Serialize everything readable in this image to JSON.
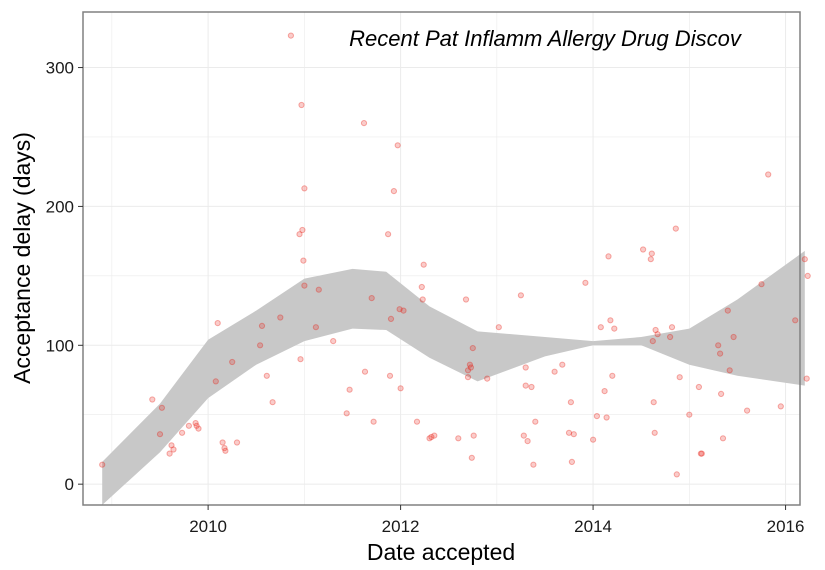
{
  "chart_data": {
    "type": "scatter",
    "title": "Recent Pat Inflamm Allergy Drug Discov",
    "xlabel": "Date accepted",
    "ylabel": "Acceptance delay (days)",
    "x_ticks": [
      2010,
      2012,
      2014,
      2016
    ],
    "y_ticks": [
      0,
      100,
      200,
      300
    ],
    "xlim": [
      2008.7,
      2016.15
    ],
    "ylim": [
      -15,
      340
    ],
    "grid": true,
    "point_color": "#e8190f",
    "band_color": "#c8c8c8",
    "points": [
      [
        2008.9,
        14
      ],
      [
        2009.42,
        61
      ],
      [
        2009.5,
        36
      ],
      [
        2009.52,
        55
      ],
      [
        2009.6,
        22
      ],
      [
        2009.62,
        28
      ],
      [
        2009.64,
        25
      ],
      [
        2009.73,
        37
      ],
      [
        2009.8,
        42
      ],
      [
        2009.87,
        44
      ],
      [
        2009.88,
        42
      ],
      [
        2009.9,
        40
      ],
      [
        2010.08,
        74
      ],
      [
        2010.1,
        116
      ],
      [
        2010.15,
        30
      ],
      [
        2010.17,
        26
      ],
      [
        2010.18,
        24
      ],
      [
        2010.25,
        88
      ],
      [
        2010.3,
        30
      ],
      [
        2010.54,
        100
      ],
      [
        2010.56,
        114
      ],
      [
        2010.61,
        78
      ],
      [
        2010.67,
        59
      ],
      [
        2010.75,
        120
      ],
      [
        2010.86,
        323
      ],
      [
        2010.95,
        180
      ],
      [
        2010.96,
        90
      ],
      [
        2010.97,
        273
      ],
      [
        2010.98,
        183
      ],
      [
        2010.99,
        161
      ],
      [
        2011.0,
        143
      ],
      [
        2011.0,
        213
      ],
      [
        2011.12,
        113
      ],
      [
        2011.15,
        140
      ],
      [
        2011.3,
        103
      ],
      [
        2011.44,
        51
      ],
      [
        2011.47,
        68
      ],
      [
        2011.62,
        260
      ],
      [
        2011.63,
        81
      ],
      [
        2011.7,
        134
      ],
      [
        2011.72,
        45
      ],
      [
        2011.87,
        180
      ],
      [
        2011.89,
        78
      ],
      [
        2011.9,
        119
      ],
      [
        2011.93,
        211
      ],
      [
        2011.97,
        244
      ],
      [
        2011.99,
        126
      ],
      [
        2012.0,
        69
      ],
      [
        2012.03,
        125
      ],
      [
        2012.17,
        45
      ],
      [
        2012.22,
        142
      ],
      [
        2012.23,
        133
      ],
      [
        2012.24,
        158
      ],
      [
        2012.3,
        33
      ],
      [
        2012.32,
        34
      ],
      [
        2012.35,
        35
      ],
      [
        2012.6,
        33
      ],
      [
        2012.68,
        133
      ],
      [
        2012.7,
        77
      ],
      [
        2012.7,
        82
      ],
      [
        2012.72,
        86
      ],
      [
        2012.73,
        84
      ],
      [
        2012.74,
        19
      ],
      [
        2012.75,
        98
      ],
      [
        2012.76,
        35
      ],
      [
        2012.9,
        76
      ],
      [
        2013.02,
        113
      ],
      [
        2013.25,
        136
      ],
      [
        2013.28,
        35
      ],
      [
        2013.3,
        84
      ],
      [
        2013.3,
        71
      ],
      [
        2013.32,
        31
      ],
      [
        2013.36,
        70
      ],
      [
        2013.38,
        14
      ],
      [
        2013.4,
        45
      ],
      [
        2013.6,
        81
      ],
      [
        2013.68,
        86
      ],
      [
        2013.75,
        37
      ],
      [
        2013.77,
        59
      ],
      [
        2013.78,
        16
      ],
      [
        2013.8,
        36
      ],
      [
        2013.92,
        145
      ],
      [
        2014.0,
        32
      ],
      [
        2014.04,
        49
      ],
      [
        2014.08,
        113
      ],
      [
        2014.12,
        67
      ],
      [
        2014.14,
        48
      ],
      [
        2014.16,
        164
      ],
      [
        2014.18,
        118
      ],
      [
        2014.2,
        78
      ],
      [
        2014.22,
        112
      ],
      [
        2014.52,
        169
      ],
      [
        2014.6,
        162
      ],
      [
        2014.61,
        166
      ],
      [
        2014.62,
        103
      ],
      [
        2014.63,
        59
      ],
      [
        2014.64,
        37
      ],
      [
        2014.65,
        111
      ],
      [
        2014.67,
        108
      ],
      [
        2014.8,
        106
      ],
      [
        2014.82,
        113
      ],
      [
        2014.86,
        184
      ],
      [
        2014.87,
        7
      ],
      [
        2014.9,
        77
      ],
      [
        2015.0,
        50
      ],
      [
        2015.1,
        70
      ],
      [
        2015.12,
        22
      ],
      [
        2015.13,
        22
      ],
      [
        2015.3,
        100
      ],
      [
        2015.32,
        94
      ],
      [
        2015.33,
        65
      ],
      [
        2015.35,
        33
      ],
      [
        2015.4,
        125
      ],
      [
        2015.42,
        82
      ],
      [
        2015.46,
        106
      ],
      [
        2015.6,
        53
      ],
      [
        2015.75,
        144
      ],
      [
        2015.82,
        223
      ],
      [
        2015.95,
        56
      ],
      [
        2016.1,
        118
      ],
      [
        2016.2,
        162
      ],
      [
        2016.22,
        76
      ],
      [
        2016.23,
        150
      ]
    ],
    "smooth_band": {
      "x": [
        2008.9,
        2009.5,
        2010.0,
        2010.5,
        2011.0,
        2011.5,
        2011.85,
        2012.3,
        2012.8,
        2013.5,
        2014.0,
        2014.5,
        2015.0,
        2015.5,
        2016.2
      ],
      "lower": [
        -30,
        23,
        62,
        86,
        103,
        112,
        111,
        91,
        74,
        92,
        100,
        100,
        86,
        78,
        71
      ],
      "upper": [
        16,
        58,
        104,
        125,
        148,
        155,
        153,
        128,
        110,
        106,
        103,
        106,
        112,
        133,
        168
      ]
    }
  }
}
